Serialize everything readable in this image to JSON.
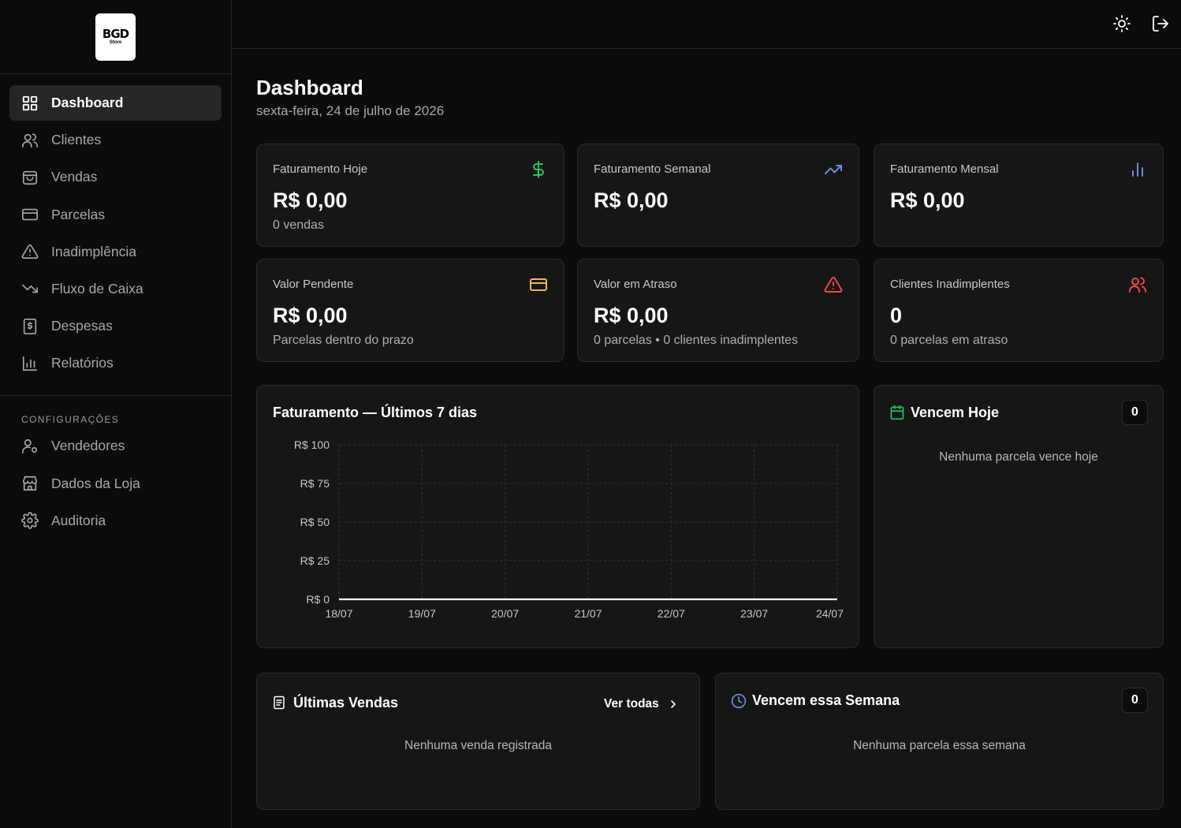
{
  "brand": {
    "logo_line1": "BGD",
    "logo_line2": "Store"
  },
  "sidebar": {
    "items": [
      {
        "label": "Dashboard",
        "icon": "layout-grid-icon",
        "active": true
      },
      {
        "label": "Clientes",
        "icon": "users-icon"
      },
      {
        "label": "Vendas",
        "icon": "shopping-bag-icon"
      },
      {
        "label": "Parcelas",
        "icon": "credit-card-icon"
      },
      {
        "label": "Inadimplência",
        "icon": "alert-triangle-icon"
      },
      {
        "label": "Fluxo de Caixa",
        "icon": "trending-down-icon"
      },
      {
        "label": "Despesas",
        "icon": "receipt-icon"
      },
      {
        "label": "Relatórios",
        "icon": "bar-chart-icon"
      }
    ],
    "settings_label": "CONFIGURAÇÕES",
    "settings_items": [
      {
        "label": "Vendedores",
        "icon": "user-cog-icon"
      },
      {
        "label": "Dados da Loja",
        "icon": "store-icon"
      },
      {
        "label": "Auditoria",
        "icon": "gear-icon"
      }
    ]
  },
  "topbar": {
    "theme_icon": "sun-icon",
    "logout_icon": "logout-icon"
  },
  "header": {
    "title": "Dashboard",
    "date": "sexta-feira, 24 de julho de 2026"
  },
  "stats": [
    {
      "label": "Faturamento Hoje",
      "value": "R$ 0,00",
      "sub": "0 vendas",
      "icon": "dollar-icon",
      "color": "#22c55e"
    },
    {
      "label": "Faturamento Semanal",
      "value": "R$ 0,00",
      "sub": "",
      "icon": "trending-up-icon",
      "color": "#6b8fd6"
    },
    {
      "label": "Faturamento Mensal",
      "value": "R$ 0,00",
      "sub": "",
      "icon": "bar-chart-icon",
      "color": "#6b8fd6"
    },
    {
      "label": "Valor Pendente",
      "value": "R$ 0,00",
      "sub": "Parcelas dentro do prazo",
      "icon": "credit-card-icon",
      "color": "#f0b35a"
    },
    {
      "label": "Valor em Atraso",
      "value": "R$ 0,00",
      "sub": "0 parcelas • 0 clientes inadimplentes",
      "icon": "alert-triangle-icon",
      "color": "#ef4444"
    },
    {
      "label": "Clientes Inadimplentes",
      "value": "0",
      "sub": "0 parcelas em atraso",
      "icon": "users-icon",
      "color": "#ef4444"
    }
  ],
  "revenue_chart": {
    "title": "Faturamento — Últimos 7 dias"
  },
  "chart_data": {
    "type": "line",
    "title": "Faturamento — Últimos 7 dias",
    "categories": [
      "18/07",
      "19/07",
      "20/07",
      "21/07",
      "22/07",
      "23/07",
      "24/07"
    ],
    "values": [
      0,
      0,
      0,
      0,
      0,
      0,
      0
    ],
    "ylim": [
      0,
      100
    ],
    "yticks": [
      0,
      25,
      50,
      75,
      100
    ],
    "ytick_labels": [
      "R$ 0",
      "R$ 25",
      "R$ 50",
      "R$ 75",
      "R$ 100"
    ],
    "grid": true,
    "xlabel": "",
    "ylabel": ""
  },
  "due_today": {
    "title": "Vencem Hoje",
    "count": "0",
    "empty": "Nenhuma parcela vence hoje",
    "icon": "calendar-icon",
    "color": "#22c55e"
  },
  "latest_sales": {
    "title": "Últimas Vendas",
    "see_all": "Ver todas",
    "empty": "Nenhuma venda registrada",
    "icon": "receipt-icon"
  },
  "due_week": {
    "title": "Vencem essa Semana",
    "count": "0",
    "empty": "Nenhuma parcela essa semana",
    "icon": "clock-icon",
    "color": "#6b8fd6"
  }
}
